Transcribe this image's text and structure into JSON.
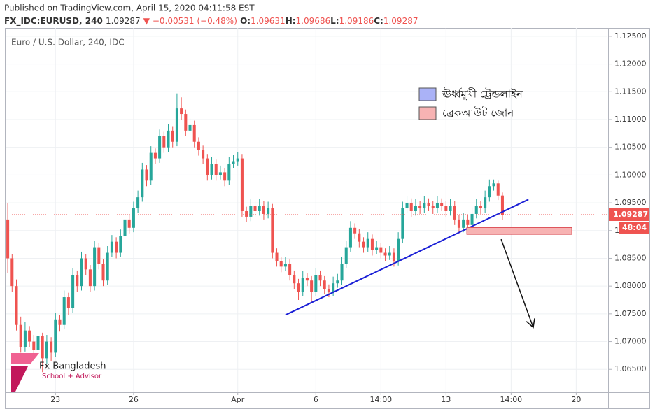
{
  "header": {
    "published": "Published on TradingView.com, April 15, 2020 04:11:58 EST",
    "symbol": "FX_IDC:EURUSD, 240",
    "price": "1.09287",
    "change": "▼ −0.00531 (−0.48%)",
    "ohlc": [
      {
        "key": "O:",
        "value": "1.09631"
      },
      {
        "key": "H:",
        "value": "1.09686"
      },
      {
        "key": "L:",
        "value": "1.09186"
      },
      {
        "key": "C:",
        "value": "1.09287"
      }
    ]
  },
  "chart_data": {
    "type": "candlestick",
    "title": "Euro / U.S. Dollar, 240, IDC",
    "up_color": "#26a69a",
    "down_color": "#ef5350",
    "grid": true,
    "xlim": [
      -0.5,
      138.2
    ],
    "ylim": [
      1.061,
      1.1265
    ],
    "xticks": [
      {
        "value": 11,
        "label": "23"
      },
      {
        "value": 29,
        "label": "26"
      },
      {
        "value": 53,
        "label": "Apr"
      },
      {
        "value": 71,
        "label": "6"
      },
      {
        "value": 86,
        "label": "14:00"
      },
      {
        "value": 101,
        "label": "13"
      },
      {
        "value": 116,
        "label": "14:00"
      },
      {
        "value": 131,
        "label": "20"
      }
    ],
    "yticks": [
      {
        "value": 1.065,
        "label": "1.06500"
      },
      {
        "value": 1.07,
        "label": "1.07000"
      },
      {
        "value": 1.075,
        "label": "1.07500"
      },
      {
        "value": 1.08,
        "label": "1.08000"
      },
      {
        "value": 1.085,
        "label": "1.08500"
      },
      {
        "value": 1.09,
        "label": "1.09000"
      },
      {
        "value": 1.095,
        "label": "1.09500"
      },
      {
        "value": 1.1,
        "label": "1.10000"
      },
      {
        "value": 1.105,
        "label": "1.10500"
      },
      {
        "value": 1.11,
        "label": "1.11000"
      },
      {
        "value": 1.115,
        "label": "1.11500"
      },
      {
        "value": 1.12,
        "label": "1.12000"
      },
      {
        "value": 1.125,
        "label": "1.12500"
      }
    ],
    "last_price": {
      "value": 1.09287,
      "label": "1.09287",
      "color": "#ef5350"
    },
    "countdown": "48:04",
    "ohlc": [
      [
        1.092,
        1.0949,
        1.0824,
        1.085
      ],
      [
        1.085,
        1.0858,
        1.079,
        1.08
      ],
      [
        1.08,
        1.0812,
        1.072,
        1.073
      ],
      [
        1.073,
        1.0745,
        1.068,
        1.069
      ],
      [
        1.069,
        1.0735,
        1.0682,
        1.072
      ],
      [
        1.072,
        1.0728,
        1.069,
        1.07
      ],
      [
        1.07,
        1.0712,
        1.0675,
        1.0685
      ],
      [
        1.0685,
        1.0722,
        1.0678,
        1.071
      ],
      [
        1.071,
        1.0716,
        1.0645,
        1.067
      ],
      [
        1.067,
        1.0712,
        1.066,
        1.07
      ],
      [
        1.07,
        1.0708,
        1.0665,
        1.068
      ],
      [
        1.068,
        1.0752,
        1.0672,
        1.074
      ],
      [
        1.074,
        1.0748,
        1.0718,
        1.073
      ],
      [
        1.073,
        1.0792,
        1.0722,
        1.078
      ],
      [
        1.078,
        1.0788,
        1.0748,
        1.076
      ],
      [
        1.076,
        1.0832,
        1.0752,
        1.082
      ],
      [
        1.082,
        1.0828,
        1.079,
        1.08
      ],
      [
        1.08,
        1.0862,
        1.0792,
        1.085
      ],
      [
        1.085,
        1.0858,
        1.082,
        1.083
      ],
      [
        1.083,
        1.0838,
        1.079,
        1.08
      ],
      [
        1.08,
        1.0882,
        1.0792,
        1.087
      ],
      [
        1.087,
        1.0878,
        1.083,
        1.084
      ],
      [
        1.084,
        1.0848,
        1.08,
        1.081
      ],
      [
        1.081,
        1.0872,
        1.0802,
        1.086
      ],
      [
        1.086,
        1.0892,
        1.0852,
        1.088
      ],
      [
        1.088,
        1.0888,
        1.085,
        1.086
      ],
      [
        1.086,
        1.0902,
        1.0852,
        1.089
      ],
      [
        1.089,
        1.0932,
        1.0882,
        1.092
      ],
      [
        1.092,
        1.0928,
        1.0895,
        1.0905
      ],
      [
        1.0905,
        1.0952,
        1.0897,
        1.094
      ],
      [
        1.094,
        1.0972,
        1.0932,
        1.096
      ],
      [
        1.096,
        1.1022,
        1.0952,
        1.101
      ],
      [
        1.101,
        1.1018,
        1.098,
        1.099
      ],
      [
        1.099,
        1.1052,
        1.0982,
        1.104
      ],
      [
        1.104,
        1.1048,
        1.102,
        1.103
      ],
      [
        1.103,
        1.1082,
        1.1022,
        1.107
      ],
      [
        1.107,
        1.1078,
        1.104,
        1.105
      ],
      [
        1.105,
        1.1092,
        1.1042,
        1.108
      ],
      [
        1.108,
        1.1088,
        1.105,
        1.106
      ],
      [
        1.106,
        1.1147,
        1.1052,
        1.112
      ],
      [
        1.112,
        1.114,
        1.11,
        1.111
      ],
      [
        1.111,
        1.1118,
        1.107,
        1.108
      ],
      [
        1.108,
        1.1102,
        1.1072,
        1.109
      ],
      [
        1.109,
        1.1098,
        1.105,
        1.106
      ],
      [
        1.106,
        1.1068,
        1.1035,
        1.1045
      ],
      [
        1.1045,
        1.1053,
        1.102,
        1.103
      ],
      [
        1.103,
        1.1038,
        1.099,
        1.1
      ],
      [
        1.1,
        1.1032,
        1.0992,
        1.102
      ],
      [
        1.102,
        1.1028,
        1.099,
        1.1
      ],
      [
        1.1,
        1.1017,
        1.0992,
        1.1005
      ],
      [
        1.1005,
        1.1013,
        1.098,
        1.099
      ],
      [
        1.099,
        1.1032,
        1.0982,
        1.102
      ],
      [
        1.102,
        1.1037,
        1.1012,
        1.1025
      ],
      [
        1.1025,
        1.1042,
        1.1017,
        1.103
      ],
      [
        1.103,
        1.1038,
        1.0925,
        1.0935
      ],
      [
        1.0935,
        1.0943,
        1.0915,
        1.0925
      ],
      [
        1.0925,
        1.0957,
        1.0917,
        1.0945
      ],
      [
        1.0945,
        1.0953,
        1.0925,
        1.0935
      ],
      [
        1.0935,
        1.0957,
        1.0927,
        1.0945
      ],
      [
        1.0945,
        1.0953,
        1.092,
        1.093
      ],
      [
        1.093,
        1.0952,
        1.0922,
        1.094
      ],
      [
        1.094,
        1.0948,
        1.085,
        1.086
      ],
      [
        1.086,
        1.0868,
        1.0835,
        1.0845
      ],
      [
        1.0845,
        1.0853,
        1.0825,
        1.0835
      ],
      [
        1.0835,
        1.0852,
        1.0827,
        1.084
      ],
      [
        1.084,
        1.0848,
        1.081,
        1.082
      ],
      [
        1.082,
        1.0828,
        1.0795,
        1.0805
      ],
      [
        1.0805,
        1.0813,
        1.0775,
        1.079
      ],
      [
        1.079,
        1.0827,
        1.0782,
        1.0815
      ],
      [
        1.0815,
        1.0823,
        1.08,
        1.081
      ],
      [
        1.081,
        1.0818,
        1.077,
        1.079
      ],
      [
        1.079,
        1.0832,
        1.0782,
        1.082
      ],
      [
        1.082,
        1.0828,
        1.08,
        1.081
      ],
      [
        1.081,
        1.0818,
        1.0785,
        1.0795
      ],
      [
        1.0795,
        1.0803,
        1.078,
        1.079
      ],
      [
        1.079,
        1.0817,
        1.0782,
        1.0805
      ],
      [
        1.0805,
        1.0822,
        1.0797,
        1.081
      ],
      [
        1.081,
        1.0852,
        1.0802,
        1.084
      ],
      [
        1.084,
        1.0882,
        1.0832,
        1.087
      ],
      [
        1.087,
        1.0917,
        1.0862,
        1.0905
      ],
      [
        1.0905,
        1.0913,
        1.0885,
        1.0895
      ],
      [
        1.0895,
        1.0903,
        1.087,
        1.088
      ],
      [
        1.088,
        1.0888,
        1.086,
        1.087
      ],
      [
        1.087,
        1.0897,
        1.0862,
        1.0885
      ],
      [
        1.0885,
        1.0893,
        1.0855,
        1.0865
      ],
      [
        1.0865,
        1.0882,
        1.0857,
        1.087
      ],
      [
        1.087,
        1.0878,
        1.085,
        1.086
      ],
      [
        1.086,
        1.0868,
        1.0845,
        1.0855
      ],
      [
        1.0855,
        1.0872,
        1.0847,
        1.086
      ],
      [
        1.086,
        1.0868,
        1.0835,
        1.0845
      ],
      [
        1.0845,
        1.0897,
        1.0837,
        1.0885
      ],
      [
        1.0885,
        1.0952,
        1.0877,
        1.094
      ],
      [
        1.094,
        1.0962,
        1.0932,
        1.095
      ],
      [
        1.095,
        1.0958,
        1.0925,
        1.0935
      ],
      [
        1.0935,
        1.0957,
        1.0927,
        1.0945
      ],
      [
        1.0945,
        1.0953,
        1.093,
        1.094
      ],
      [
        1.094,
        1.0962,
        1.0932,
        1.095
      ],
      [
        1.095,
        1.0958,
        1.0935,
        1.0945
      ],
      [
        1.0945,
        1.0953,
        1.093,
        1.094
      ],
      [
        1.094,
        1.0962,
        1.0932,
        1.095
      ],
      [
        1.095,
        1.0958,
        1.0935,
        1.0945
      ],
      [
        1.0945,
        1.0953,
        1.0925,
        1.0935
      ],
      [
        1.0935,
        1.0957,
        1.0927,
        1.0945
      ],
      [
        1.0945,
        1.0953,
        1.091,
        1.092
      ],
      [
        1.092,
        1.0928,
        1.0895,
        1.0905
      ],
      [
        1.0905,
        1.0932,
        1.0897,
        1.092
      ],
      [
        1.092,
        1.0928,
        1.09,
        1.091
      ],
      [
        1.091,
        1.0942,
        1.0902,
        1.093
      ],
      [
        1.093,
        1.0957,
        1.0922,
        1.0945
      ],
      [
        1.0945,
        1.0953,
        1.093,
        1.094
      ],
      [
        1.094,
        1.0972,
        1.0932,
        1.096
      ],
      [
        1.096,
        1.0992,
        1.0952,
        1.098
      ],
      [
        1.098,
        1.0992,
        1.0972,
        1.0985
      ],
      [
        1.0985,
        1.099,
        1.0955,
        1.0963
      ],
      [
        1.09631,
        1.09686,
        1.09186,
        1.09287
      ]
    ],
    "trendline": {
      "color": "#1a1fd6",
      "points": [
        [
          64,
          1.0748
        ],
        [
          120,
          1.0956
        ]
      ]
    },
    "breakout_zone": {
      "fill": "#f7b3b3",
      "stroke": "#d9434a",
      "x": [
        105.8,
        130
      ],
      "y": [
        1.08933,
        1.09056
      ]
    },
    "arrow": {
      "color": "#111111",
      "points": [
        [
          113.7,
          1.08844
        ],
        [
          121.1,
          1.07256
        ]
      ]
    },
    "legend": [
      {
        "name": "ঊর্ধ্বমুখী ট্রেন্ডলাইন",
        "color": "#aab2f7"
      },
      {
        "name": "ব্রেকআউট জোন",
        "color": "#f7b3b3"
      }
    ]
  },
  "logo": {
    "name": "Fx Bangladesh",
    "tagline": "School + Advisor"
  }
}
